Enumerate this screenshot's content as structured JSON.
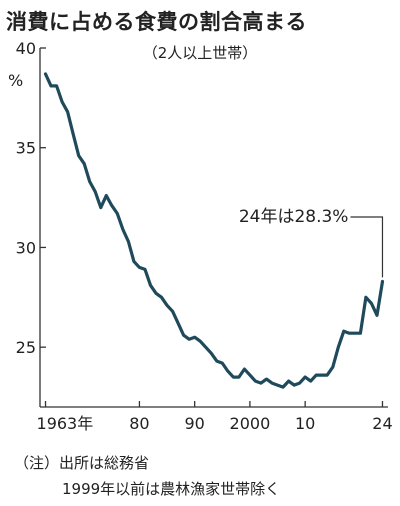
{
  "chart_data": {
    "type": "line",
    "title": "消費に占める食費の割合高まる",
    "subtitle": "（2人以上世帯）",
    "ylabel": "%",
    "ylim": [
      22,
      40
    ],
    "xlim": [
      1962,
      2025
    ],
    "y_ticks": [
      25,
      30,
      35,
      40
    ],
    "y_tick_labels": [
      "25",
      "30",
      "35",
      "40"
    ],
    "x_ticks": [
      1963,
      1980,
      1990,
      2000,
      2010,
      2024
    ],
    "x_tick_labels": [
      "1963年",
      "80",
      "90",
      "2000",
      "10",
      "24"
    ],
    "grid": false,
    "line_color": "#1f4a5b",
    "annotation": {
      "text": "24年は28.3%",
      "x": 2024,
      "y": 28.3
    },
    "series": [
      {
        "x": [
          1963,
          1964,
          1965,
          1966,
          1967,
          1968,
          1969,
          1970,
          1971,
          1972,
          1973,
          1974,
          1975,
          1976,
          1977,
          1978,
          1979,
          1980,
          1981,
          1982,
          1983,
          1984,
          1985,
          1986,
          1987,
          1988,
          1989,
          1990,
          1991,
          1992,
          1993,
          1994,
          1995,
          1996,
          1997,
          1998,
          1999,
          2000,
          2001,
          2002,
          2003,
          2004,
          2005,
          2006,
          2007,
          2008,
          2009,
          2010,
          2011,
          2012,
          2013,
          2014,
          2015,
          2016,
          2017,
          2018,
          2019,
          2020,
          2021,
          2022,
          2023,
          2024
        ],
        "values": [
          38.7,
          38.1,
          38.1,
          37.3,
          36.8,
          35.7,
          34.6,
          34.2,
          33.3,
          32.8,
          32.0,
          32.6,
          32.1,
          31.7,
          30.9,
          30.3,
          29.3,
          29.0,
          28.9,
          28.1,
          27.7,
          27.5,
          27.1,
          26.8,
          26.2,
          25.6,
          25.4,
          25.5,
          25.3,
          25.0,
          24.7,
          24.3,
          24.2,
          23.8,
          23.5,
          23.5,
          23.9,
          23.6,
          23.3,
          23.2,
          23.4,
          23.2,
          23.1,
          23.0,
          23.3,
          23.1,
          23.2,
          23.5,
          23.3,
          23.6,
          23.6,
          23.6,
          24.0,
          25.0,
          25.8,
          25.7,
          25.7,
          25.7,
          27.5,
          27.2,
          26.6,
          28.3
        ]
      }
    ]
  },
  "notes": {
    "line1": "（注）出所は総務省",
    "line2": "1999年以前は農林漁家世帯除く"
  }
}
